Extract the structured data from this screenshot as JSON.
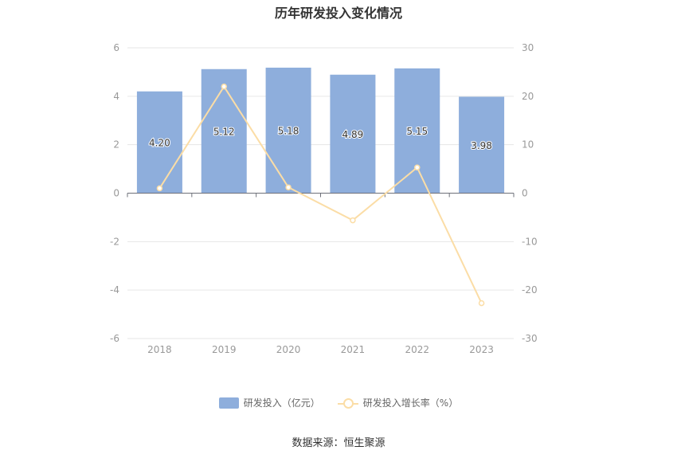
{
  "chart_data": {
    "type": "bar",
    "title": "历年研发投入变化情况",
    "categories": [
      "2018",
      "2019",
      "2020",
      "2021",
      "2022",
      "2023"
    ],
    "series": [
      {
        "name": "研发投入（亿元）",
        "type": "bar",
        "axis": "left",
        "values": [
          4.2,
          5.12,
          5.18,
          4.89,
          5.15,
          3.98
        ],
        "labels": [
          "4.20",
          "5.12",
          "5.18",
          "4.89",
          "5.15",
          "3.98"
        ]
      },
      {
        "name": "研发投入增长率（%）",
        "type": "line",
        "axis": "right",
        "values": [
          1.0,
          22.0,
          1.2,
          -5.6,
          5.3,
          -22.7
        ]
      }
    ],
    "y_left": {
      "min": -6,
      "max": 6,
      "ticks": [
        "6",
        "4",
        "2",
        "0",
        "-2",
        "-4",
        "-6"
      ]
    },
    "y_right": {
      "min": -30,
      "max": 30,
      "ticks": [
        "30",
        "20",
        "10",
        "0",
        "-10",
        "-20",
        "-30"
      ]
    },
    "grid": true,
    "legend_position": "bottom",
    "colors": {
      "bar": "#8eaedc",
      "line": "#fbdda6"
    }
  },
  "source": "数据来源：恒生聚源"
}
